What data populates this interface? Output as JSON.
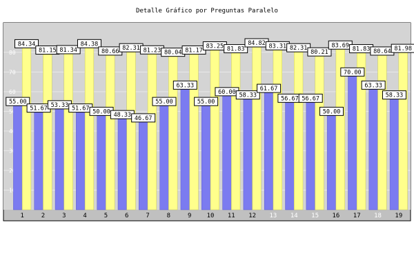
{
  "colors": {
    "panel": "#c0c0c0",
    "plot": "#d4d4d4",
    "blue": "#7b7bf0",
    "blue_edge": "#5a5ad0",
    "yellow": "#ffff8c",
    "yellow_edge": "#c8c858",
    "label_bg": "#ffffff"
  },
  "chart_data": {
    "type": "bar",
    "title": "Detalle Gráfico por Preguntas Paralelo",
    "categories": [
      "1",
      "2",
      "3",
      "4",
      "5",
      "6",
      "7",
      "8",
      "9",
      "10",
      "11",
      "12",
      "13",
      "14",
      "15",
      "16",
      "17",
      "18",
      "19"
    ],
    "dim_categories": [
      "13",
      "14",
      "15",
      "18"
    ],
    "ylim": [
      0,
      95
    ],
    "yticks": [
      10,
      20,
      30,
      40,
      50,
      60,
      70,
      80
    ],
    "grid": true,
    "legend": "none",
    "series": [
      {
        "color": "#7b7bf0",
        "values": [
          55.0,
          51.67,
          53.33,
          51.67,
          50.0,
          48.33,
          46.67,
          55.0,
          63.33,
          55.0,
          60.0,
          58.33,
          61.67,
          56.67,
          56.67,
          50.0,
          70.0,
          63.33,
          58.33
        ]
      },
      {
        "color": "#ffff8c",
        "values": [
          84.34,
          81.15,
          81.34,
          84.38,
          80.66,
          82.31,
          81.23,
          80.04,
          81.17,
          83.25,
          81.83,
          84.82,
          83.31,
          82.31,
          80.21,
          83.69,
          81.83,
          80.64,
          81.98
        ]
      }
    ],
    "data_labels": [
      [
        "55.00",
        "51.67",
        "53.33",
        "51.67",
        "50.00",
        "48.33",
        "46.67",
        "55.00",
        "63.33",
        "55.00",
        "60.00",
        "58.33",
        "61.67",
        "56.67",
        "56.67",
        "50.00",
        "70.00",
        "63.33",
        "58.33"
      ],
      [
        "84.34",
        "81.15",
        "81.34",
        "84.38",
        "80.66",
        "82.31",
        "81.23",
        "80.04",
        "81.17",
        "83.25",
        "81.83",
        "84.82",
        "83.31",
        "82.31",
        "80.21",
        "83.69",
        "81.83",
        "80.64",
        "81.98"
      ]
    ]
  }
}
